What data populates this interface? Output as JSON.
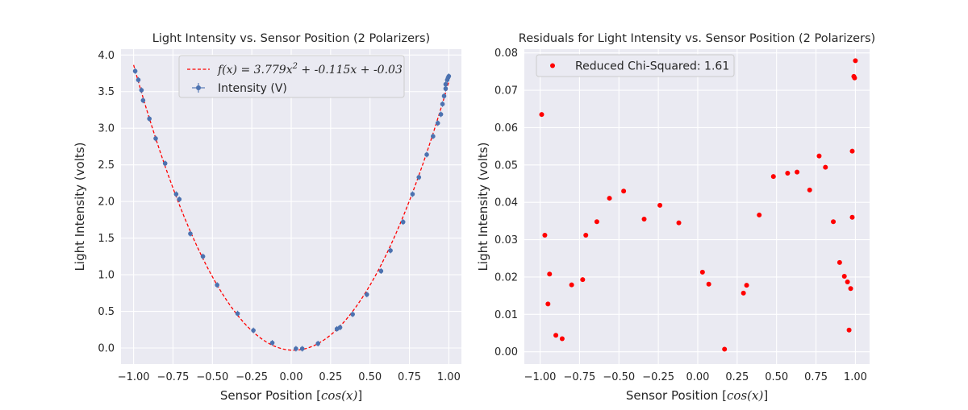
{
  "chart_data": [
    {
      "type": "scatter",
      "title": "Light Intensity vs. Sensor Position (2 Polarizers)",
      "xlabel_prefix": "Sensor Position [",
      "xlabel_math": "cos(x)",
      "xlabel_suffix": "]",
      "ylabel": "Light Intensity (volts)",
      "xlim": [
        -1.08,
        1.08
      ],
      "ylim": [
        -0.22,
        4.08
      ],
      "xticks": [
        -1.0,
        -0.75,
        -0.5,
        -0.25,
        0.0,
        0.25,
        0.5,
        0.75,
        1.0
      ],
      "xtick_labels": [
        "−1.00",
        "−0.75",
        "−0.50",
        "−0.25",
        "0.00",
        "0.25",
        "0.50",
        "0.75",
        "1.00"
      ],
      "yticks": [
        0.0,
        0.5,
        1.0,
        1.5,
        2.0,
        2.5,
        3.0,
        3.5,
        4.0
      ],
      "ytick_labels": [
        "0.0",
        "0.5",
        "1.0",
        "1.5",
        "2.0",
        "2.5",
        "3.0",
        "3.5",
        "4.0"
      ],
      "grid": true,
      "legend_position": "top-center",
      "fit": {
        "a": 3.779,
        "b": -0.115,
        "c": -0.03,
        "label_lhs": "f(x) = 3.779x",
        "label_exp": "2",
        "label_rhs": " + -0.115x + -0.03",
        "color": "#ff0000"
      },
      "series": [
        {
          "name": "Intensity (V)",
          "color": "#4c72b0",
          "x": [
            -0.99,
            -0.97,
            -0.95,
            -0.94,
            -0.9,
            -0.86,
            -0.8,
            -0.73,
            -0.71,
            -0.64,
            -0.56,
            -0.47,
            -0.34,
            -0.24,
            -0.12,
            0.03,
            0.07,
            0.17,
            0.29,
            0.31,
            0.39,
            0.48,
            0.57,
            0.63,
            0.71,
            0.77,
            0.81,
            0.86,
            0.9,
            0.93,
            0.95,
            0.96,
            0.97,
            0.98,
            0.98,
            0.99,
            0.995,
            1.0
          ],
          "y": [
            3.78,
            3.66,
            3.52,
            3.38,
            3.13,
            2.86,
            2.52,
            2.1,
            2.03,
            1.56,
            1.25,
            0.86,
            0.47,
            0.24,
            0.07,
            -0.01,
            -0.01,
            0.06,
            0.26,
            0.28,
            0.46,
            0.73,
            1.05,
            1.33,
            1.72,
            2.1,
            2.33,
            2.64,
            2.89,
            3.07,
            3.19,
            3.33,
            3.44,
            3.54,
            3.6,
            3.66,
            3.69,
            3.71
          ]
        }
      ]
    },
    {
      "type": "scatter",
      "title": "Residuals for Light Intensity vs. Sensor Position (2 Polarizers)",
      "xlabel_prefix": "Sensor Position [",
      "xlabel_math": "cos(x)",
      "xlabel_suffix": "]",
      "ylabel": "Light Intensity (volts)",
      "xlim": [
        -1.1,
        1.09
      ],
      "ylim": [
        -0.0033,
        0.081
      ],
      "xticks": [
        -1.0,
        -0.75,
        -0.5,
        -0.25,
        0.0,
        0.25,
        0.5,
        0.75,
        1.0
      ],
      "xtick_labels": [
        "−1.00",
        "−0.75",
        "−0.50",
        "−0.25",
        "0.00",
        "0.25",
        "0.50",
        "0.75",
        "1.00"
      ],
      "yticks": [
        0.0,
        0.01,
        0.02,
        0.03,
        0.04,
        0.05,
        0.06,
        0.07,
        0.08
      ],
      "ytick_labels": [
        "0.00",
        "0.01",
        "0.02",
        "0.03",
        "0.04",
        "0.05",
        "0.06",
        "0.07",
        "0.08"
      ],
      "grid": true,
      "legend_position": "top-left",
      "series": [
        {
          "name": "Reduced Chi-Squared: 1.61",
          "color": "#ff0000",
          "x": [
            -0.99,
            -0.97,
            -0.95,
            -0.94,
            -0.9,
            -0.86,
            -0.8,
            -0.73,
            -0.71,
            -0.64,
            -0.56,
            -0.47,
            -0.34,
            -0.24,
            -0.12,
            0.03,
            0.07,
            0.17,
            0.29,
            0.31,
            0.39,
            0.48,
            0.57,
            0.63,
            0.71,
            0.77,
            0.81,
            0.86,
            0.9,
            0.93,
            0.95,
            0.96,
            0.97,
            0.98,
            0.98,
            0.99,
            0.995,
            1.0
          ],
          "y": [
            0.0635,
            0.0312,
            0.0128,
            0.0208,
            0.0044,
            0.0035,
            0.0179,
            0.0193,
            0.0312,
            0.0348,
            0.0411,
            0.043,
            0.0355,
            0.0392,
            0.0345,
            0.0213,
            0.0181,
            0.0007,
            0.0157,
            0.0178,
            0.0366,
            0.0469,
            0.0478,
            0.0481,
            0.0433,
            0.0524,
            0.0494,
            0.0348,
            0.0239,
            0.0202,
            0.0187,
            0.0058,
            0.0169,
            0.036,
            0.0537,
            0.0737,
            0.0733,
            0.0779
          ]
        }
      ]
    }
  ]
}
